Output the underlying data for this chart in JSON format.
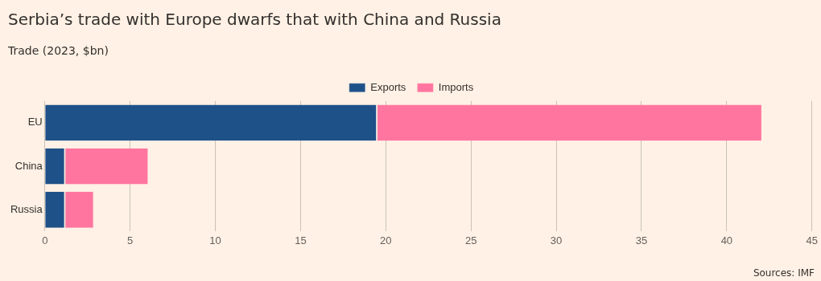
{
  "chart_data": {
    "type": "bar",
    "orientation": "horizontal",
    "stacked": true,
    "title": "Serbia’s trade with Europe dwarfs that with China and Russia",
    "subtitle": "Trade (2023, $bn)",
    "categories": [
      "EU",
      "China",
      "Russia"
    ],
    "series": [
      {
        "name": "Exports",
        "color": "#1f5189",
        "values": [
          19.5,
          1.2,
          1.2
        ]
      },
      {
        "name": "Imports",
        "color": "#ff75a0",
        "values": [
          22.6,
          4.9,
          1.7
        ]
      }
    ],
    "xlim": [
      0,
      45
    ],
    "xticks": [
      0,
      5,
      10,
      15,
      20,
      25,
      30,
      35,
      40,
      45
    ],
    "grid": "x",
    "legend": "top",
    "annotations": [
      "Sources: IMF"
    ]
  }
}
